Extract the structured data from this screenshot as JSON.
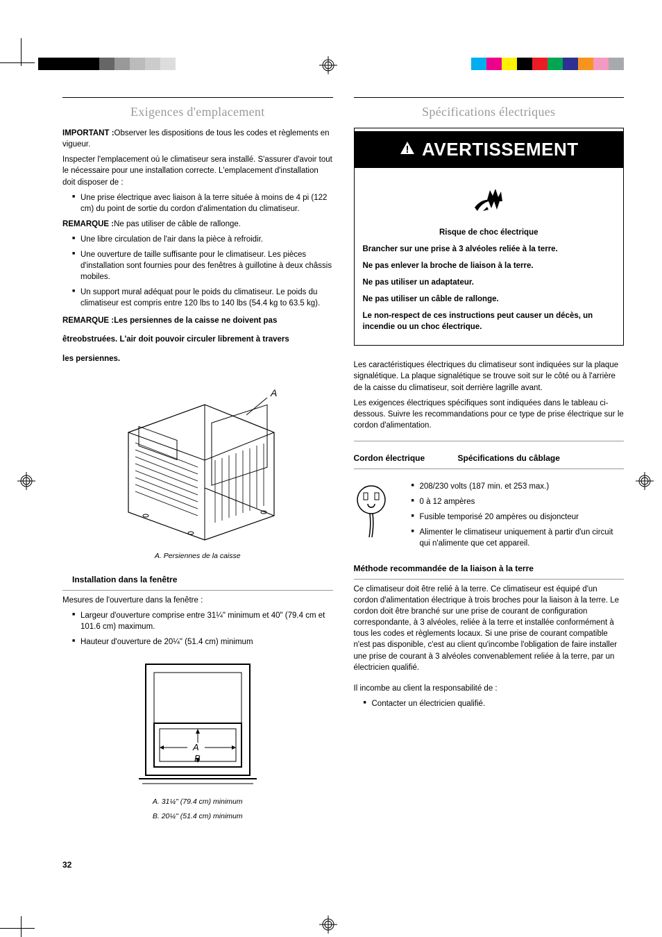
{
  "pageNumber": "32",
  "cropColors": {
    "grayscale": [
      "#000000",
      "#000000",
      "#000000",
      "#000000",
      "#666666",
      "#999999",
      "#bbbbbb",
      "#cccccc",
      "#dddddd"
    ],
    "cmyk": [
      "#00aeef",
      "#ec008c",
      "#fff200",
      "#000000",
      "#ed1c24",
      "#00a651",
      "#2e3192",
      "#f7941d",
      "#f49ac1",
      "#a7a9ac"
    ]
  },
  "left": {
    "heading": "Exigences d'emplacement",
    "p_important_label": "IMPORTANT :",
    "p_important": "Observer les dispositions de tous les codes et règlements en vigueur.",
    "p_inspect": "Inspecter l'emplacement où le climatiseur sera installé. S'assurer d'avoir tout le nécessaire pour une installation correcte. L'emplacement d'installation doit disposer de :",
    "bullets1": [
      "Une prise électrique avec liaison à la terre située à moins de 4 pi (122 cm) du point de sortie du cordon d'alimentation du climatiseur."
    ],
    "p_rem1_label": "REMARQUE :",
    "p_rem1": "Ne pas utiliser de câble de rallonge.",
    "bullets2": [
      "Une libre circulation de l'air dans la pièce à refroidir.",
      "Une ouverture de taille suffisante pour le climatiseur. Les pièces d'installation sont fournies pour des fenêtres à guillotine à deux châssis mobiles.",
      "Un support mural adéquat pour le poids du climatiseur. Le poids du climatiseur est compris entre 120 lbs to 140 lbs (54.4 kg to 63.5 kg)."
    ],
    "p_rem2_label": "REMARQUE :",
    "p_rem2a": "Les persiennes de la caisse ne doivent pas",
    "p_rem2b": "êtreobstruées. L'air doit pouvoir circuler librement à travers",
    "p_rem2c": "les persiennes.",
    "fig1_label": "A",
    "fig1_caption": "A. Persiennes de la caisse",
    "install_head": "Installation dans la fenêtre",
    "p_measure": "Mesures de l'ouverture dans la fenêtre :",
    "bullets3": [
      "Largeur d'ouverture comprise entre 31¼\" minimum et 40\" (79.4 cm et 101.6 cm) maximum.",
      "Hauteur d'ouverture de 20¼\" (51.4 cm) minimum"
    ],
    "fig2_A": "A",
    "fig2_B": "B",
    "fig2_cap_a": "A. 31¼\" (79.4 cm) minimum",
    "fig2_cap_b": "B. 20¼\" (51.4 cm) minimum"
  },
  "right": {
    "heading": "Spécifications électriques",
    "warn_title": "AVERTISSEMENT",
    "warn_risk": "Risque de choc électrique",
    "warn_lines": [
      "Brancher sur une prise à 3 alvéoles reliée à la terre.",
      "Ne pas enlever la broche de liaison à la terre.",
      "Ne pas utiliser un adaptateur.",
      "Ne pas utiliser un câble de rallonge.",
      "Le non-respect de ces instructions peut causer un décès, un incendie ou un choc électrique."
    ],
    "p_carac": "Les caractéristiques électriques du climatiseur sont indiquées sur la plaque signalétique. La plaque signalétique se trouve soit sur le côté ou à l'arrière de la caisse du climatiseur, soit derrière lagrille avant.",
    "p_exig": "Les exigences électriques spécifiques sont indiquées dans le tableau ci-dessous. Suivre les recommandations pour ce type de prise électrique sur le cordon d'alimentation.",
    "spec_h1": "Cordon électrique",
    "spec_h2": "Spécifications du câblage",
    "spec_bullets": [
      "208/230 volts (187 min. et 253 max.)",
      " 0 à 12 ampères",
      " Fusible temporisé 20 ampères ou disjoncteur",
      "Alimenter le climatiseur uniquement à partir d'un circuit qui n'alimente que cet appareil."
    ],
    "method_head": "Méthode recommandée de la liaison à la terre",
    "p_method": "Ce climatiseur doit être relié à la terre. Ce climatiseur est équipé d'un cordon d'alimentation électrique à trois broches pour la liaison à la terre. Le cordon doit être branché sur une prise de courant de configuration correspondante, à 3 alvéoles, reliée à la terre et installée conformément à tous les codes et règlements locaux. Si une prise de courant compatible n'est pas disponible, c'est au client qu'incombe l'obligation de faire installer une prise de courant à 3 alvéoles convenablement reliée à la terre, par un électricien qualifié.",
    "p_resp": "Il incombe au client la responsabilité de :",
    "bullets_resp": [
      "Contacter un électricien qualifié."
    ]
  }
}
